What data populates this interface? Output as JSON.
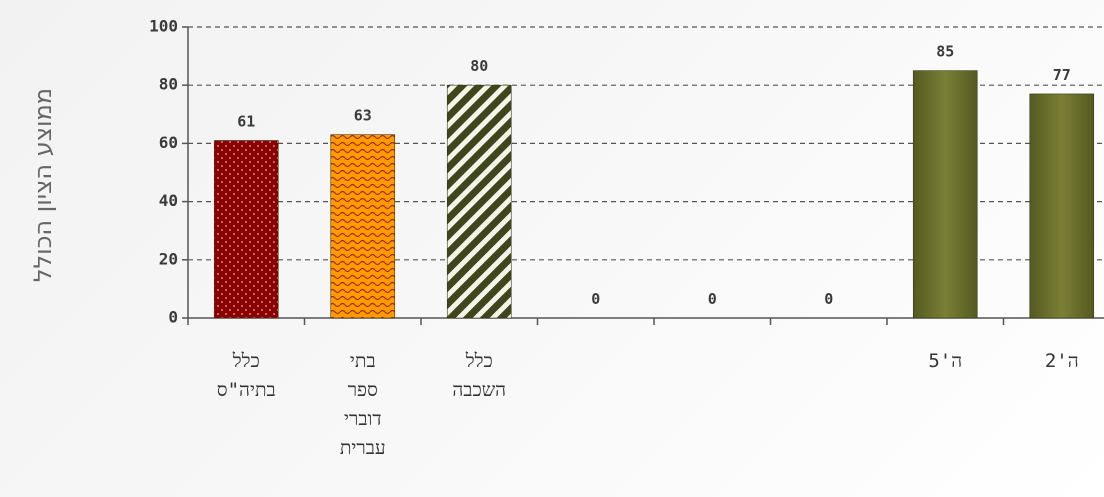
{
  "chart_data": {
    "type": "bar",
    "ylabel": "ממוצע הציון הכולל",
    "ylim": [
      0,
      100
    ],
    "yticks": [
      "0",
      "20",
      "40",
      "60",
      "80",
      "100"
    ],
    "grid": true,
    "categories": [
      {
        "lines": [
          "כלל",
          "בתיה\"ס"
        ]
      },
      {
        "lines": [
          "בתי",
          "ספר",
          "דוברי",
          "עברית"
        ]
      },
      {
        "lines": [
          "כלל",
          "השכבה"
        ]
      },
      {
        "lines": [
          ""
        ]
      },
      {
        "lines": [
          ""
        ]
      },
      {
        "lines": [
          ""
        ]
      },
      {
        "lines": [
          "ה'5"
        ]
      },
      {
        "lines": [
          "ה'2"
        ]
      }
    ],
    "values": [
      61,
      63,
      80,
      0,
      0,
      0,
      85,
      77
    ],
    "value_labels": [
      "61",
      "63",
      "80",
      "0",
      "0",
      "0",
      "85",
      "77"
    ],
    "colors": {
      "school_total": "#8b0000",
      "hebrew_schools": "#ff9a00",
      "grade_total": "#4b5220",
      "class_bar": "#6b6f2c",
      "axis": "#555555",
      "grid": "#555555"
    },
    "patterns": [
      "dots",
      "waves",
      "diagonal",
      "none",
      "none",
      "none",
      "solid",
      "solid"
    ]
  }
}
